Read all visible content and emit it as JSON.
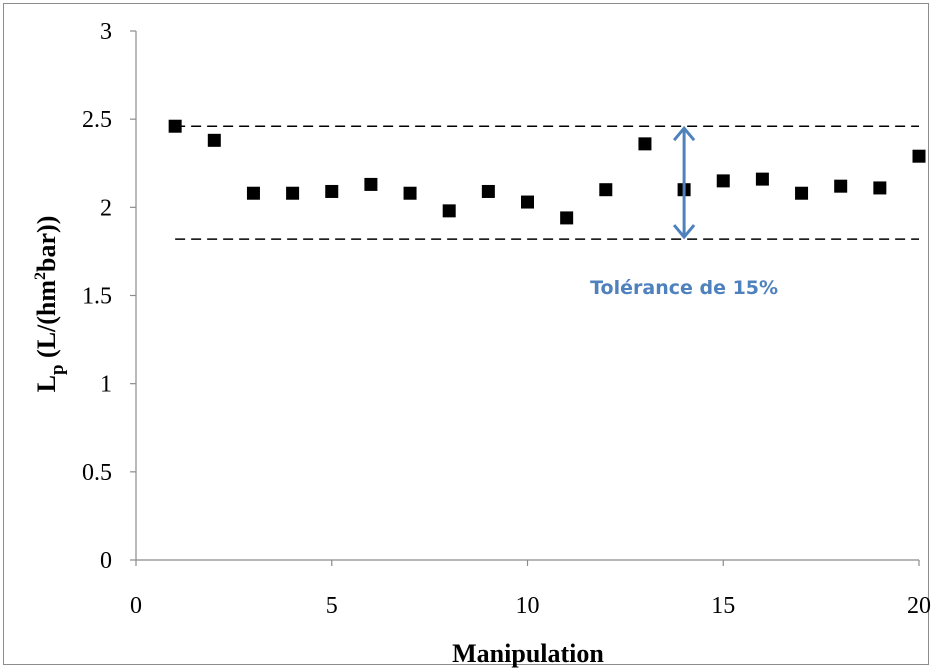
{
  "chart_data": {
    "type": "scatter",
    "xlabel": "Manipulation",
    "ylabel": {
      "main": "L",
      "subscript": "p",
      "unit_open": " (L/(hm",
      "unit_sup": "2",
      "unit_close": "bar))"
    },
    "xlim": [
      0,
      20
    ],
    "ylim": [
      0,
      3
    ],
    "xticks": [
      0,
      5,
      10,
      15,
      20
    ],
    "yticks": [
      0,
      0.5,
      1,
      1.5,
      2,
      2.5,
      3
    ],
    "grid": false,
    "legend": "none",
    "series": [
      {
        "marker": "square",
        "color": "#000000",
        "points": [
          {
            "x": 1,
            "y": 2.46
          },
          {
            "x": 2,
            "y": 2.38
          },
          {
            "x": 3,
            "y": 2.08
          },
          {
            "x": 4,
            "y": 2.08
          },
          {
            "x": 5,
            "y": 2.09
          },
          {
            "x": 6,
            "y": 2.13
          },
          {
            "x": 7,
            "y": 2.08
          },
          {
            "x": 8,
            "y": 1.98
          },
          {
            "x": 9,
            "y": 2.09
          },
          {
            "x": 10,
            "y": 2.03
          },
          {
            "x": 11,
            "y": 1.94
          },
          {
            "x": 12,
            "y": 2.1
          },
          {
            "x": 13,
            "y": 2.36
          },
          {
            "x": 14,
            "y": 2.1
          },
          {
            "x": 15,
            "y": 2.15
          },
          {
            "x": 16,
            "y": 2.16
          },
          {
            "x": 17,
            "y": 2.08
          },
          {
            "x": 18,
            "y": 2.12
          },
          {
            "x": 19,
            "y": 2.11
          },
          {
            "x": 20,
            "y": 2.29
          }
        ]
      }
    ],
    "reference_lines": [
      {
        "y": 2.46,
        "style": "dashed",
        "color": "#000000",
        "x_start": 1,
        "x_end": 20
      },
      {
        "y": 1.82,
        "style": "dashed",
        "color": "#000000",
        "x_start": 1,
        "x_end": 20
      }
    ],
    "annotation": {
      "text": "Tolérance de 15%",
      "color": "#4f81bd",
      "arrow_x": 14,
      "arrow_y_from": 1.82,
      "arrow_y_to": 2.46
    }
  }
}
